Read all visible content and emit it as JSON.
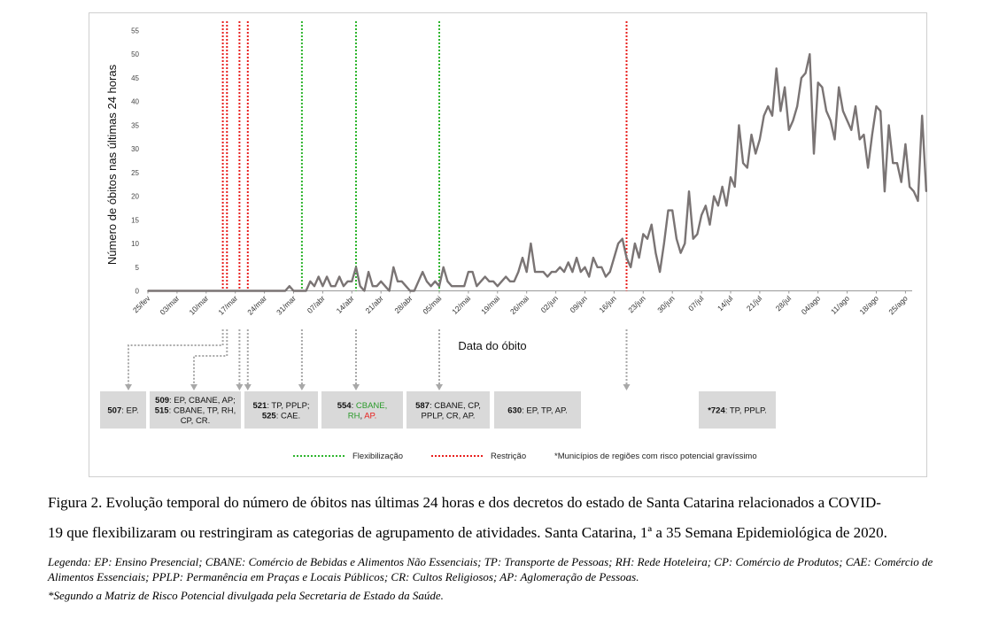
{
  "colors": {
    "line": "#7a7474",
    "flex": "#2db52d",
    "restr": "#e8201e",
    "arrow": "#a8a8a8",
    "box": "#d9d9d9",
    "green_text": "#2a9a2a",
    "red_text": "#e8201e"
  },
  "chart_data": {
    "type": "line",
    "ylabel": "Número de óbitos nas últimas 24 horas",
    "xlabel": "Data do óbito",
    "ylim": [
      0,
      55
    ],
    "yticks": [
      "0",
      "5",
      "10",
      "15",
      "20",
      "25",
      "30",
      "35",
      "40",
      "45",
      "50",
      "55"
    ],
    "x_ticks": [
      "25/fev",
      "03/mar",
      "10/mar",
      "17/mar",
      "24/mar",
      "31/mar",
      "07/abr",
      "14/abr",
      "21/abr",
      "28/abr",
      "05/mai",
      "12/mai",
      "19/mai",
      "26/mai",
      "02/jun",
      "09/jun",
      "16/jun",
      "23/jun",
      "30/jun",
      "07/jul",
      "14/jul",
      "21/jul",
      "28/jul",
      "04/ago",
      "11/ago",
      "18/ago",
      "25/ago"
    ],
    "x_start": "25/fev",
    "series": [
      {
        "values": [
          0,
          0,
          0,
          0,
          0,
          0,
          0,
          0,
          0,
          0,
          0,
          0,
          0,
          0,
          0,
          0,
          0,
          0,
          0,
          0,
          0,
          0,
          0,
          0,
          0,
          0,
          0,
          0,
          0,
          0,
          0,
          0,
          0,
          0,
          1,
          0,
          0,
          0,
          0,
          2,
          1,
          3,
          1,
          3,
          1,
          1,
          3,
          1,
          2,
          2,
          5,
          1,
          0,
          4,
          1,
          1,
          2,
          1,
          0,
          5,
          2,
          2,
          1,
          0,
          0,
          2,
          4,
          2,
          1,
          2,
          1,
          5,
          2,
          1,
          1,
          1,
          1,
          4,
          4,
          1,
          2,
          3,
          2,
          2,
          1,
          2,
          3,
          2,
          2,
          4,
          7,
          4,
          10,
          4,
          4,
          4,
          3,
          4,
          4,
          5,
          4,
          6,
          4,
          7,
          4,
          5,
          3,
          7,
          5,
          5,
          3,
          4,
          7,
          10,
          11,
          7,
          5,
          10,
          7,
          12,
          11,
          14,
          8,
          4,
          10,
          17,
          17,
          11,
          8,
          10,
          21,
          11,
          12,
          16,
          18,
          14,
          20,
          18,
          22,
          18,
          24,
          22,
          35,
          27,
          26,
          33,
          29,
          32,
          37,
          39,
          37,
          47,
          38,
          43,
          34,
          36,
          39,
          45,
          46,
          50,
          29,
          44,
          43,
          38,
          36,
          32,
          43,
          38,
          36,
          34,
          39,
          32,
          33,
          26,
          33,
          39,
          38,
          21,
          35,
          27,
          27,
          23,
          31,
          22,
          21,
          19,
          37,
          21
        ]
      }
    ],
    "decree_lines": [
      {
        "type": "Restrição",
        "x": 18
      },
      {
        "type": "Restrição",
        "x": 19
      },
      {
        "type": "Restrição",
        "x": 22
      },
      {
        "type": "Restrição",
        "x": 24
      },
      {
        "type": "Flexibilização",
        "x": 37
      },
      {
        "type": "Flexibilização",
        "x": 50
      },
      {
        "type": "Flexibilização",
        "x": 70
      },
      {
        "type": "Restrição",
        "x": 115
      }
    ],
    "legend": {
      "flex": "Flexibilização",
      "restr": "Restrição",
      "note": "*Municípios de regiões com risco potencial gravíssimo"
    }
  },
  "decree_boxes": [
    {
      "lines": [
        [
          {
            "t": "507",
            "b": true
          },
          {
            "t": ": EP."
          }
        ]
      ]
    },
    {
      "lines": [
        [
          {
            "t": "509",
            "b": true
          },
          {
            "t": ": EP, CBANE, AP;"
          }
        ],
        [
          {
            "t": "515",
            "b": true
          },
          {
            "t": ": CBANE, TP, RH,"
          }
        ],
        [
          {
            "t": "CP, CR."
          }
        ]
      ]
    },
    {
      "lines": [
        [
          {
            "t": "521",
            "b": true
          },
          {
            "t": ": TP, PPLP;"
          }
        ],
        [
          {
            "t": "525",
            "b": true
          },
          {
            "t": ": CAE."
          }
        ]
      ]
    },
    {
      "lines": [
        [
          {
            "t": "554",
            "b": true
          },
          {
            "t": ": "
          },
          {
            "t": "CBANE,",
            "c": "green"
          }
        ],
        [
          {
            "t": "RH",
            "c": "green"
          },
          {
            "t": ", "
          },
          {
            "t": "AP.",
            "c": "red"
          }
        ]
      ]
    },
    {
      "lines": [
        [
          {
            "t": "587",
            "b": true
          },
          {
            "t": ": CBANE, CP,"
          }
        ],
        [
          {
            "t": "PPLP, CR, AP."
          }
        ]
      ]
    },
    {
      "lines": [
        [
          {
            "t": "630",
            "b": true
          },
          {
            "t": ": EP, TP, AP."
          }
        ]
      ]
    },
    {
      "lines": [
        [
          {
            "t": "*724",
            "b": true
          },
          {
            "t": ": TP, PPLP."
          }
        ]
      ]
    }
  ],
  "caption": {
    "line1": "Figura 2. Evolução temporal do número de óbitos nas últimas 24 horas e dos decretos do estado de Santa Catarina relacionados a COVID-",
    "line2": "19 que flexibilizaram ou restringiram as categorias de agrupamento de atividades. Santa Catarina, 1ª a 35 Semana Epidemiológica de 2020.",
    "legend": "Legenda: EP: Ensino Presencial; CBANE: Comércio de Bebidas e Alimentos Não Essenciais; TP: Transporte de Pessoas; RH: Rede Hoteleira; CP: Comércio de Produtos; CAE: Comércio de Alimentos Essenciais; PPLP: Permanência em Praças e Locais Públicos; CR: Cultos Religiosos; AP: Aglomeração de Pessoas.",
    "note": "*Segundo a Matriz de Risco Potencial divulgada pela Secretaria de Estado da Saúde."
  }
}
